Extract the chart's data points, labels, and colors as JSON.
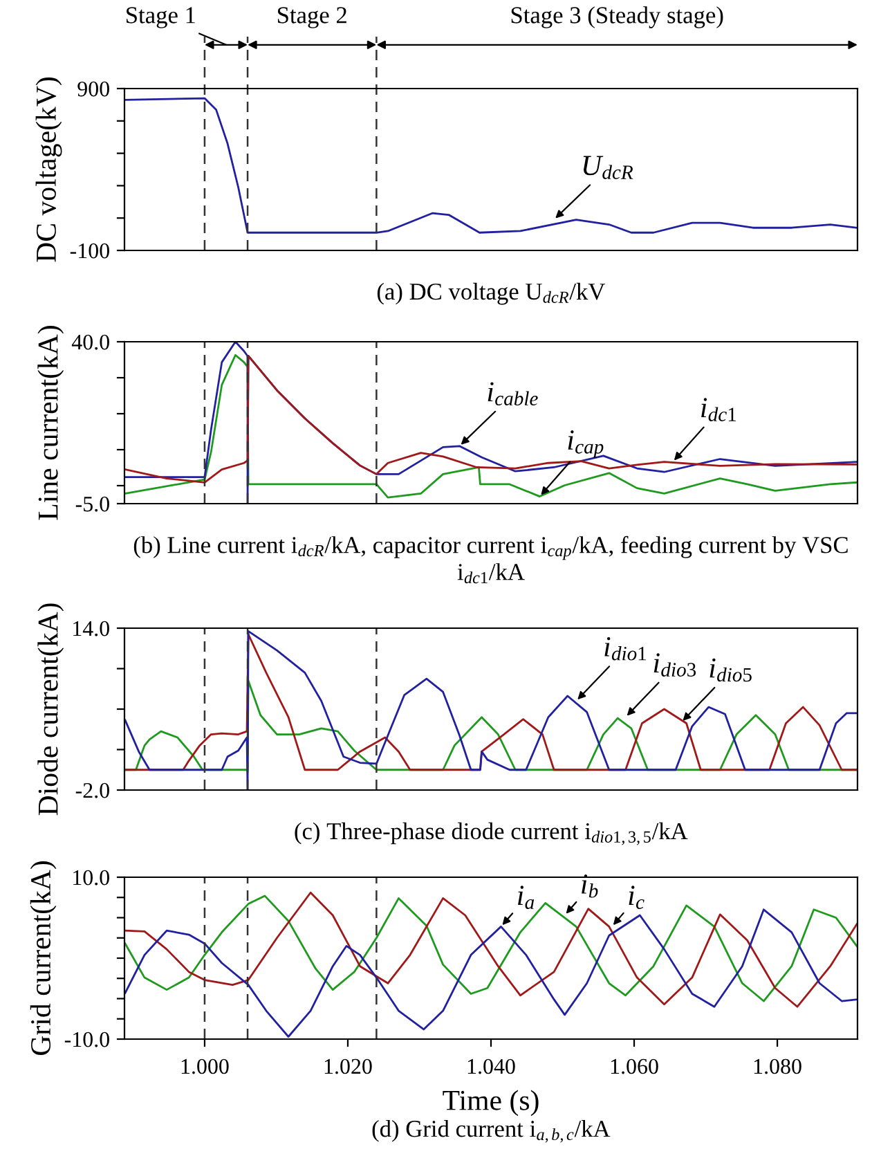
{
  "chart_data": [
    {
      "type": "line",
      "ylabel": "DC voltage(kV)",
      "xlim": [
        0.9888,
        1.0912
      ],
      "ylim": [
        -100,
        900
      ],
      "yticks": [
        -100,
        {
          "value": 100,
          "label": null
        },
        {
          "value": 300,
          "label": null
        },
        {
          "value": 500,
          "label": null
        },
        {
          "value": 700,
          "label": null
        },
        900
      ],
      "tick_labels": "y",
      "ref_lines": [
        {
          "axis": "x",
          "value": 1.0,
          "color": "#333333",
          "line_style": "dashed"
        },
        {
          "axis": "x",
          "value": 1.006,
          "color": "#333333",
          "line_style": "dashed"
        },
        {
          "axis": "x",
          "value": 1.024,
          "color": "#333333",
          "line_style": "dashed"
        }
      ],
      "series": [
        {
          "color": "#2020a0",
          "x": [
            0.9889,
            1.0,
            1.0016,
            1.0032,
            1.0047,
            1.006,
            1.0061,
            1.024,
            1.0256,
            1.0318,
            1.0341,
            1.0384,
            1.0441,
            1.0519,
            1.0565,
            1.0596,
            1.0627,
            1.0681,
            1.072,
            1.0766,
            1.082,
            1.0874,
            1.0911
          ],
          "values": [
            830,
            840,
            770,
            560,
            290,
            10,
            10,
            10,
            20,
            130,
            120,
            10,
            20,
            90,
            60,
            10,
            10,
            70,
            70,
            40,
            40,
            60,
            40
          ]
        }
      ],
      "annotations": [
        "Stage 1",
        "Stage 2",
        "Stage 3 (Steady stage)",
        {
          "text": "U$_{dcR}$",
          "x": 1.0488,
          "y": 90
        },
        "(a) DC voltage U$_{dcR}$/kV"
      ]
    },
    {
      "type": "line",
      "ylabel": "Line current(kA)",
      "xlim": [
        0.9888,
        1.0912
      ],
      "ylim": [
        -5,
        40
      ],
      "yticks": [
        {
          "value": -5,
          "label": "-5.0"
        },
        {
          "value": 0,
          "label": null
        },
        {
          "value": 10,
          "label": null
        },
        {
          "value": 20,
          "label": null
        },
        {
          "value": 30,
          "label": null
        },
        {
          "value": 40,
          "label": "40.0"
        }
      ],
      "tick_labels": "y",
      "ref_lines": [
        {
          "axis": "x",
          "value": 1.0,
          "color": "#333333",
          "line_style": "dashed"
        },
        {
          "axis": "x",
          "value": 1.006,
          "color": "#333333",
          "line_style": "dashed"
        },
        {
          "axis": "x",
          "value": 1.024,
          "color": "#333333",
          "line_style": "dashed"
        }
      ],
      "series": [
        {
          "color": "#1e9a1e",
          "x": [
            0.9889,
            1.0,
            1.0009,
            1.0024,
            1.0043,
            1.0055,
            1.006,
            1.0061,
            1.024,
            1.0256,
            1.0302,
            1.0333,
            1.0383,
            1.0385,
            1.0426,
            1.0468,
            1.0503,
            1.0565,
            1.0604,
            1.0642,
            1.072,
            1.0758,
            1.0797,
            1.0874,
            1.0911
          ],
          "values": [
            -2.2,
            1.7,
            9.4,
            28.0,
            36.3,
            34.3,
            33.0,
            0.4,
            0.4,
            -3.3,
            -2.2,
            3.2,
            5.1,
            0.4,
            0.4,
            -3.0,
            0.1,
            3.5,
            -0.7,
            -2.2,
            2.0,
            0.4,
            -1.4,
            0.4,
            0.9
          ]
        },
        {
          "color": "#2020a0",
          "x": [
            0.9889,
            1.0,
            1.0009,
            1.0024,
            1.0043,
            1.0055,
            1.006,
            1.006,
            1.0061,
            1.0101,
            1.014,
            1.0179,
            1.0217,
            1.024,
            1.0271,
            1.0333,
            1.0356,
            1.0387,
            1.0434,
            1.0488,
            1.0557,
            1.0604,
            1.0642,
            1.072,
            1.0797,
            1.0911
          ],
          "values": [
            2.4,
            2.4,
            15.6,
            34.3,
            40.0,
            37.4,
            36.0,
            -5.0,
            36.1,
            26.5,
            18.7,
            11.8,
            5.6,
            3.2,
            3.2,
            10.7,
            11.0,
            7.9,
            4.0,
            5.1,
            8.3,
            4.8,
            3.8,
            7.4,
            5.5,
            6.6
          ]
        },
        {
          "color": "#a01818",
          "x": [
            0.9889,
            0.9947,
            1.0,
            1.0024,
            1.0055,
            1.006,
            1.0061,
            1.0101,
            1.014,
            1.0179,
            1.0217,
            1.024,
            1.0256,
            1.0302,
            1.0333,
            1.038,
            1.0434,
            1.048,
            1.0526,
            1.0565,
            1.0604,
            1.0642,
            1.072,
            1.0797,
            1.0911
          ],
          "values": [
            4.5,
            2.0,
            0.9,
            4.5,
            6.3,
            7.0,
            36.1,
            26.5,
            18.7,
            11.8,
            5.6,
            3.2,
            6.3,
            9.1,
            8.1,
            5.1,
            4.8,
            6.3,
            6.8,
            4.8,
            5.8,
            6.6,
            5.5,
            6.0,
            5.9
          ]
        }
      ],
      "annotations": [
        {
          "text": "i$_{cable}$",
          "x": 1.0356,
          "y": 11.0
        },
        {
          "text": "i$_{cap}$",
          "x": 1.0468,
          "y": -3.0
        },
        {
          "text": "i$_{dc1}$",
          "x": 1.0654,
          "y": 6.6
        },
        "(b) Line current i$_{dcR}$/kA, capacitor current i$_{cap}$/kA, feeding current by VSC i$_{dc1}$/kA"
      ]
    },
    {
      "type": "line",
      "ylabel": "Diode current(kA)",
      "xlim": [
        0.9888,
        1.0912
      ],
      "ylim": [
        -2,
        14
      ],
      "yticks": [
        {
          "value": -2,
          "label": "-2.0"
        },
        {
          "value": 2,
          "label": null
        },
        {
          "value": 6,
          "label": null
        },
        {
          "value": 10,
          "label": null
        },
        {
          "value": 14,
          "label": "14.0"
        }
      ],
      "tick_labels": "y",
      "ref_lines": [
        {
          "axis": "x",
          "value": 1.0,
          "color": "#333333",
          "line_style": "dashed"
        },
        {
          "axis": "x",
          "value": 1.006,
          "color": "#333333",
          "line_style": "dashed"
        },
        {
          "axis": "x",
          "value": 1.024,
          "color": "#333333",
          "line_style": "dashed"
        }
      ],
      "series": [
        {
          "color": "#1e9a1e",
          "x": [
            0.9889,
            0.9904,
            0.9916,
            0.9923,
            0.9939,
            0.9962,
            0.9985,
            0.9997,
            1.006,
            1.0061,
            1.0078,
            1.0101,
            1.0132,
            1.0163,
            1.0186,
            1.0209,
            1.024,
            1.0333,
            1.0349,
            1.0387,
            1.041,
            1.0434,
            1.0534,
            1.0557,
            1.0577,
            1.0596,
            1.0619,
            1.072,
            1.0743,
            1.077,
            1.0797,
            1.0816,
            1.0911
          ],
          "values": [
            0,
            0,
            2.4,
            3.0,
            3.8,
            3.2,
            1.3,
            0,
            0,
            8.8,
            5.4,
            3.5,
            3.5,
            4.1,
            3.8,
            1.9,
            0,
            0,
            2.4,
            5.2,
            3.5,
            0,
            0,
            3.5,
            5.1,
            4.1,
            0,
            0,
            3.5,
            5.4,
            3.5,
            0,
            0
          ]
        },
        {
          "color": "#a01818",
          "x": [
            0.9889,
            0.997,
            0.9978,
            0.9993,
            1.0009,
            1.0024,
            1.0047,
            1.0059,
            1.0061,
            1.0086,
            1.0117,
            1.014,
            1.0186,
            1.0217,
            1.0252,
            1.0271,
            1.0287,
            1.0385,
            1.0387,
            1.0418,
            1.0445,
            1.0472,
            1.0488,
            1.0588,
            1.0611,
            1.0642,
            1.0673,
            1.0693,
            1.0789,
            1.0812,
            1.0836,
            1.0859,
            1.089,
            1.0911
          ],
          "values": [
            0,
            0,
            0.9,
            2.4,
            3.5,
            3.6,
            3.5,
            3.8,
            13.4,
            9.6,
            5.2,
            0,
            0,
            1.8,
            3.2,
            1.8,
            0,
            0,
            1.8,
            3.5,
            5.0,
            3.5,
            0,
            0,
            4.6,
            6.0,
            4.6,
            0,
            0,
            4.6,
            6.2,
            4.4,
            0,
            0
          ]
        },
        {
          "color": "#2020a0",
          "x": [
            0.9889,
            0.9908,
            0.9923,
            1.0024,
            1.0032,
            1.0047,
            1.0059,
            1.006,
            1.0061,
            1.0101,
            1.014,
            1.0163,
            1.0194,
            1.0217,
            1.024,
            1.0256,
            1.0279,
            1.031,
            1.0333,
            1.0356,
            1.0372,
            1.0385,
            1.0387,
            1.0395,
            1.0426,
            1.0449,
            1.048,
            1.0507,
            1.0534,
            1.0565,
            1.0658,
            1.0681,
            1.0704,
            1.0727,
            1.0755,
            1.0859,
            1.0882,
            1.0897,
            1.0911
          ],
          "values": [
            4.9,
            1.8,
            0,
            0,
            1.3,
            1.9,
            3.2,
            -2.0,
            13.7,
            11.8,
            9.6,
            6.8,
            1.3,
            0.7,
            0.6,
            3.4,
            7.4,
            9.0,
            7.7,
            3.4,
            0,
            0,
            1.8,
            1.0,
            0,
            0,
            5.2,
            7.3,
            5.7,
            0,
            0,
            4.3,
            6.2,
            5.5,
            0,
            0,
            4.6,
            5.6,
            5.6
          ]
        }
      ],
      "annotations": [
        {
          "text": "i$_{dio1}$",
          "x": 1.0519,
          "y": 6.8
        },
        {
          "text": "i$_{dio3}$",
          "x": 1.0588,
          "y": 5.2
        },
        {
          "text": "i$_{dio5}$",
          "x": 1.0666,
          "y": 4.7
        },
        "(c) Three-phase diode current i$_{dio1,3,5}$/kA"
      ]
    },
    {
      "type": "line",
      "ylabel": "Grid current(kA)",
      "xlabel": "Time (s)",
      "xlim": [
        0.9888,
        1.0912
      ],
      "ylim": [
        -10,
        10
      ],
      "yticks": [
        {
          "value": -10,
          "label": "-10.0"
        },
        {
          "value": -7.5,
          "label": null
        },
        {
          "value": -5,
          "label": null
        },
        {
          "value": -2.5,
          "label": null
        },
        {
          "value": 0,
          "label": null
        },
        {
          "value": 2.5,
          "label": null
        },
        {
          "value": 5,
          "label": null
        },
        {
          "value": 7.5,
          "label": null
        },
        {
          "value": 10,
          "label": "10.0"
        }
      ],
      "xticks": [
        {
          "value": 1.0,
          "label": "1.000"
        },
        {
          "value": 1.02,
          "label": "1.020"
        },
        {
          "value": 1.04,
          "label": "1.040"
        },
        {
          "value": 1.06,
          "label": "1.060"
        },
        {
          "value": 1.08,
          "label": "1.080"
        }
      ],
      "ref_lines": [
        {
          "axis": "x",
          "value": 1.0,
          "color": "#333333",
          "line_style": "dashed"
        },
        {
          "axis": "x",
          "value": 1.006,
          "color": "#333333",
          "line_style": "dashed"
        },
        {
          "axis": "x",
          "value": 1.024,
          "color": "#333333",
          "line_style": "dashed"
        }
      ],
      "series": [
        {
          "color": "#1e9a1e",
          "x": [
            0.9889,
            0.9916,
            0.9947,
            0.9978,
            1.0,
            1.0024,
            1.0061,
            1.0084,
            1.0117,
            1.0155,
            1.0179,
            1.0209,
            1.024,
            1.0271,
            1.031,
            1.0333,
            1.0372,
            1.0395,
            1.0441,
            1.0476,
            1.0519,
            1.0565,
            1.0588,
            1.0627,
            1.0673,
            1.0712,
            1.0751,
            1.0781,
            1.082,
            1.0851,
            1.0882,
            1.0911
          ],
          "values": [
            1.8,
            -2.4,
            -3.9,
            -2.4,
            0.4,
            3.2,
            6.7,
            7.7,
            4.6,
            -1.3,
            -3.9,
            -1.7,
            2.5,
            7.4,
            4.0,
            -0.8,
            -4.4,
            -3.7,
            3.2,
            6.8,
            3.9,
            -3.1,
            -4.6,
            -1.0,
            6.5,
            3.9,
            -3.1,
            -5.3,
            -1.0,
            6.0,
            5.0,
            1.5
          ]
        },
        {
          "color": "#a01818",
          "x": [
            0.9889,
            0.9916,
            0.9947,
            0.9978,
            1.0,
            1.0039,
            1.0061,
            1.0101,
            1.0148,
            1.0179,
            1.0217,
            1.0256,
            1.0287,
            1.0333,
            1.0364,
            1.041,
            1.0441,
            1.0488,
            1.0536,
            1.0565,
            1.0604,
            1.0642,
            1.0681,
            1.072,
            1.0758,
            1.0797,
            1.0828,
            1.0874,
            1.0911
          ],
          "values": [
            3.4,
            3.3,
            1.1,
            -1.7,
            -2.7,
            -3.3,
            -2.7,
            2.5,
            8.1,
            5.3,
            -1.0,
            -3.1,
            0.4,
            7.4,
            5.3,
            -1.0,
            -4.6,
            -1.7,
            6.1,
            3.9,
            -2.4,
            -5.7,
            -2.4,
            5.4,
            2.2,
            -3.7,
            -6.0,
            -1.0,
            4.2
          ]
        },
        {
          "color": "#2020a0",
          "x": [
            0.9889,
            0.9916,
            0.9947,
            0.9978,
            1.0,
            1.0024,
            1.0061,
            1.0086,
            1.0117,
            1.0148,
            1.0179,
            1.0198,
            1.0217,
            1.024,
            1.0271,
            1.0306,
            1.0333,
            1.0372,
            1.0414,
            1.0449,
            1.0488,
            1.0503,
            1.0534,
            1.0565,
            1.0608,
            1.0642,
            1.0681,
            1.0712,
            1.0751,
            1.0781,
            1.082,
            1.0859,
            1.089,
            1.0911
          ],
          "values": [
            -4.3,
            0.4,
            3.4,
            2.9,
            1.8,
            -0.6,
            -3.3,
            -6.5,
            -9.7,
            -6.5,
            -1.0,
            1.5,
            0.4,
            -2.4,
            -6.5,
            -8.8,
            -6.5,
            0.4,
            3.9,
            0.4,
            -5.1,
            -7.0,
            -3.1,
            2.8,
            5.3,
            1.1,
            -4.4,
            -6.0,
            -1.0,
            6.0,
            3.2,
            -3.1,
            -5.3,
            -5.1
          ]
        }
      ],
      "annotations": [
        {
          "text": "i$_{a}$",
          "x": 1.0414,
          "y": 3.9
        },
        {
          "text": "i$_{b}$",
          "x": 1.0503,
          "y": 5.3
        },
        {
          "text": "i$_{c}$",
          "x": 1.0569,
          "y": 3.9
        },
        "(d) Grid current i$_{a,b,c}$/kA"
      ]
    }
  ]
}
